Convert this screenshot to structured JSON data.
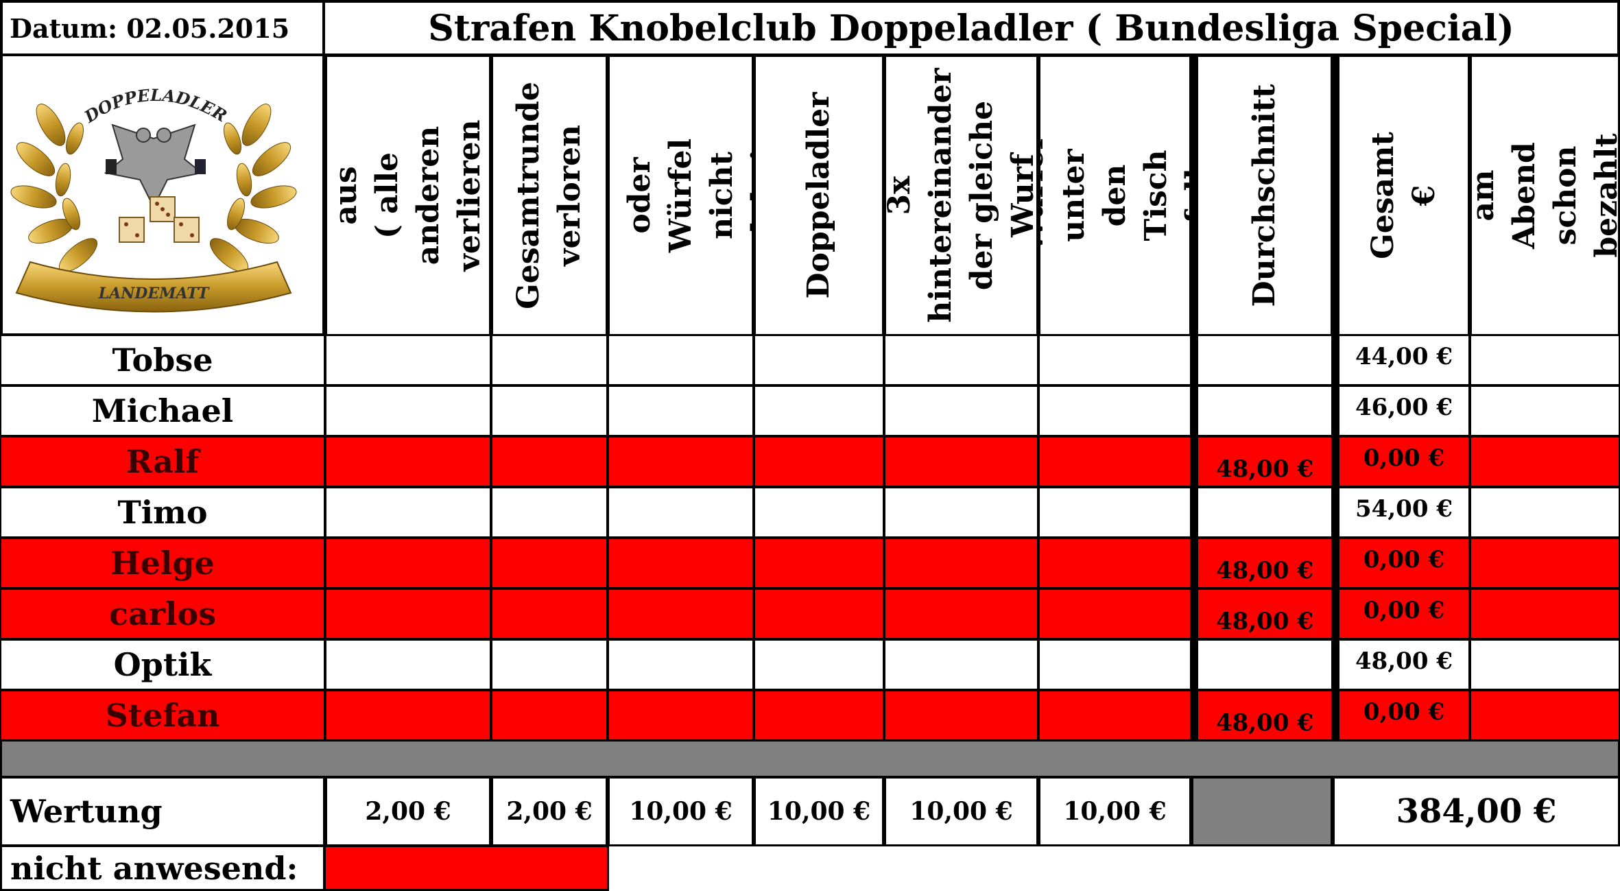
{
  "date_label": "Datum: 02.05.2015",
  "title": "Strafen Knobelclub Doppeladler ( Bundesliga Special)",
  "logo": {
    "top_text": "DOPPELADLER",
    "bottom_text": "LANDEMATT"
  },
  "columns": [
    {
      "label": "Hand aus\n( alle anderen\nverlieren )"
    },
    {
      "label": "Gesamtrunde\nverloren"
    },
    {
      "label": "Becher oder\nWürfel nicht\ndabei"
    },
    {
      "label": "Doppeladler"
    },
    {
      "label": "3x\nhintereinander\nder gleiche\nWurf"
    },
    {
      "label": "Würfel unter\nden Tisch\ngefallen"
    },
    {
      "label": "Durchschnitt"
    },
    {
      "label": "Gesamt €"
    },
    {
      "label": "am Abend\nschon bezahlt"
    }
  ],
  "rows": [
    {
      "name": "Tobse",
      "absent": false,
      "durchschnitt": "",
      "gesamt": "44,00 €"
    },
    {
      "name": "Michael",
      "absent": false,
      "durchschnitt": "",
      "gesamt": "46,00 €"
    },
    {
      "name": "Ralf",
      "absent": true,
      "durchschnitt": "48,00 €",
      "gesamt": "0,00 €"
    },
    {
      "name": "Timo",
      "absent": false,
      "durchschnitt": "",
      "gesamt": "54,00 €"
    },
    {
      "name": "Helge",
      "absent": true,
      "durchschnitt": "48,00 €",
      "gesamt": "0,00 €"
    },
    {
      "name": "carlos",
      "absent": true,
      "durchschnitt": "48,00 €",
      "gesamt": "0,00 €"
    },
    {
      "name": "Optik",
      "absent": false,
      "durchschnitt": "",
      "gesamt": "48,00 €"
    },
    {
      "name": "Stefan",
      "absent": true,
      "durchschnitt": "48,00 €",
      "gesamt": "0,00 €"
    }
  ],
  "wertung": {
    "label": "Wertung",
    "values": [
      "2,00 €",
      "2,00 €",
      "10,00 €",
      "10,00 €",
      "10,00 €",
      "10,00 €"
    ],
    "total": "384,00 €"
  },
  "absent_label": "nicht anwesend:",
  "colors": {
    "absent": "#ff0000",
    "separator": "#808080"
  }
}
